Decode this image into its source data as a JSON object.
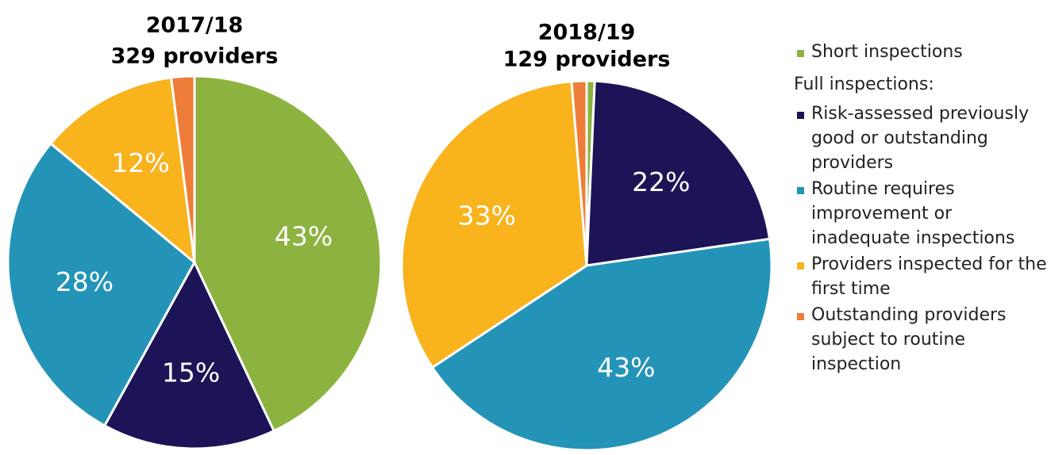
{
  "legend": {
    "group_heading": "Full inspections:",
    "items": [
      {
        "name": "Short inspections",
        "color": "#8cb33f"
      },
      {
        "name": "Risk-assessed previously good or outstanding providers",
        "color": "#1c1457"
      },
      {
        "name": "Routine requires improvement or inadequate inspections",
        "color": "#2394b8"
      },
      {
        "name": "Providers inspected for the first time",
        "color": "#f8b31d"
      },
      {
        "name": "Outstanding providers subject to routine inspection",
        "color": "#ee7d3a"
      }
    ]
  },
  "chart_data": [
    {
      "type": "pie",
      "title": "2017/18",
      "subtitle": "329 providers",
      "values": [
        43,
        15,
        28,
        12,
        2
      ],
      "value_labels": [
        "43%",
        "15%",
        "28%",
        "12%",
        null
      ]
    },
    {
      "type": "pie",
      "title": "2018/19",
      "subtitle": "129 providers",
      "values": [
        0.7,
        22,
        43,
        33,
        1.3
      ],
      "value_labels": [
        null,
        "22%",
        "43%",
        "33%",
        null
      ]
    }
  ]
}
